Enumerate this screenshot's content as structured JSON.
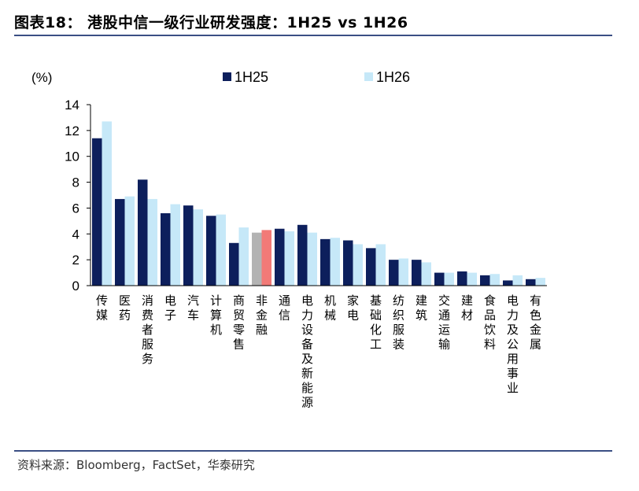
{
  "figure": {
    "title": "图表18：  港股中信一级行业研发强度：1H25 vs 1H26",
    "source": "资料来源：Bloomberg，FactSet，华泰研究"
  },
  "colors": {
    "series_1H25": "#0d1f5c",
    "series_1H26": "#c6e8f8",
    "highlight_1H25": "#b3b3b3",
    "highlight_1H26": "#f27a77",
    "rule": "#3b4f84"
  },
  "chart_data": {
    "type": "bar",
    "ylabel": "(%)",
    "ylim": [
      0,
      14
    ],
    "yticks": [
      0,
      2,
      4,
      6,
      8,
      10,
      12,
      14
    ],
    "grid": false,
    "legend_position": "top",
    "highlight_category": "非金融",
    "categories": [
      "传媒",
      "医药",
      "消费者服务",
      "电子",
      "汽车",
      "计算机",
      "商贸零售",
      "非金融",
      "通信",
      "电力设备及新能源",
      "机械",
      "家电",
      "基础化工",
      "纺织服装",
      "建筑",
      "交通运输",
      "建材",
      "食品饮料",
      "电力及公用事业",
      "有色金属"
    ],
    "series": [
      {
        "name": "1H25",
        "values": [
          11.4,
          6.7,
          8.2,
          5.6,
          6.2,
          5.4,
          3.3,
          4.1,
          4.4,
          4.7,
          3.6,
          3.5,
          2.9,
          2.0,
          2.0,
          1.0,
          1.1,
          0.8,
          0.4,
          0.5
        ]
      },
      {
        "name": "1H26",
        "values": [
          12.7,
          6.9,
          6.7,
          6.3,
          5.9,
          5.5,
          4.5,
          4.3,
          4.2,
          4.1,
          3.7,
          3.2,
          3.2,
          2.1,
          1.8,
          1.0,
          1.0,
          0.9,
          0.8,
          0.6
        ]
      }
    ]
  }
}
